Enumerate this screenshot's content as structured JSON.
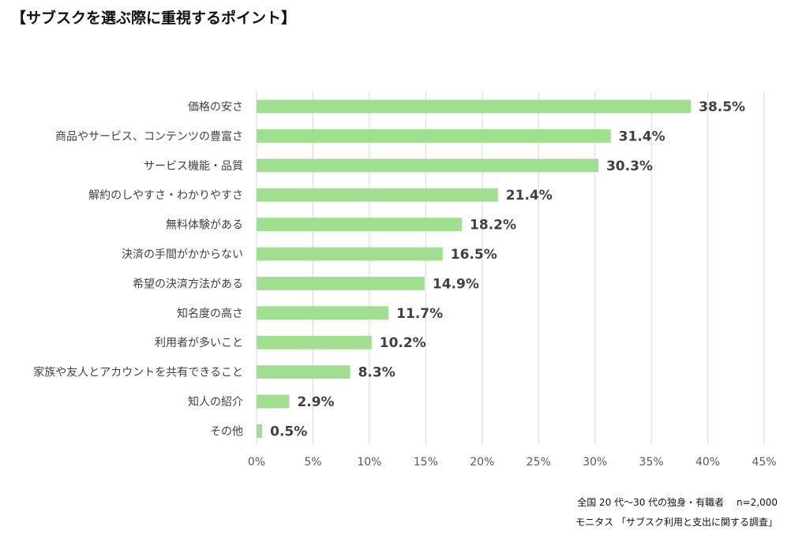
{
  "chart_data": {
    "type": "bar",
    "orientation": "horizontal",
    "title": "【サブスクを選ぶ際に重視するポイント】",
    "categories": [
      "価格の安さ",
      "商品やサービス、コンテンツの豊富さ",
      "サービス機能・品質",
      "解約のしやすさ・わかりやすさ",
      "無料体験がある",
      "決済の手間がかからない",
      "希望の決済方法がある",
      "知名度の高さ",
      "利用者が多いこと",
      "家族や友人とアカウントを共有できること",
      "知人の紹介",
      "その他"
    ],
    "values": [
      38.5,
      31.4,
      30.3,
      21.4,
      18.2,
      16.5,
      14.9,
      11.7,
      10.2,
      8.3,
      2.9,
      0.5
    ],
    "value_labels": [
      "38.5%",
      "31.4%",
      "30.3%",
      "21.4%",
      "18.2%",
      "16.5%",
      "14.9%",
      "11.7%",
      "10.2%",
      "8.3%",
      "2.9%",
      "0.5%"
    ],
    "xlim": [
      0,
      45
    ],
    "xticks": [
      0,
      5,
      10,
      15,
      20,
      25,
      30,
      35,
      40,
      45
    ],
    "xtick_labels": [
      "0%",
      "5%",
      "10%",
      "15%",
      "20%",
      "25%",
      "30%",
      "35%",
      "40%",
      "45%"
    ],
    "grid": true,
    "bar_color": "#9fdf8f"
  },
  "source": {
    "line1": "全国 20 代～30 代の独身・有職者　 n=2,000",
    "line2": "モニタス 「サブスク利用と支出に関する調査」"
  }
}
